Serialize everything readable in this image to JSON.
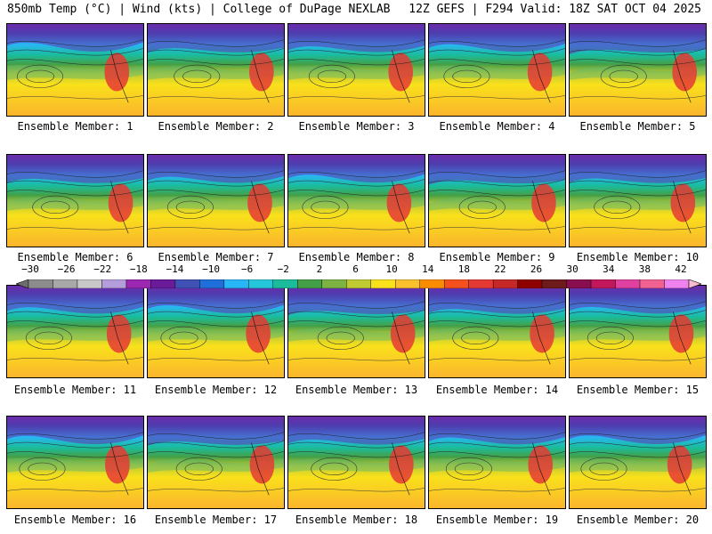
{
  "header": {
    "left": "850mb Temp (°C) | Wind (kts) | College of DuPage NEXLAB",
    "right": "12Z GEFS | F294 Valid: 18Z SAT OCT 04 2025"
  },
  "members": [
    "Ensemble Member: 1",
    "Ensemble Member: 2",
    "Ensemble Member: 3",
    "Ensemble Member: 4",
    "Ensemble Member: 5",
    "Ensemble Member: 6",
    "Ensemble Member: 7",
    "Ensemble Member: 8",
    "Ensemble Member: 9",
    "Ensemble Member: 10",
    "Ensemble Member: 11",
    "Ensemble Member: 12",
    "Ensemble Member: 13",
    "Ensemble Member: 14",
    "Ensemble Member: 15",
    "Ensemble Member: 16",
    "Ensemble Member: 17",
    "Ensemble Member: 18",
    "Ensemble Member: 19",
    "Ensemble Member: 20"
  ],
  "colorbar": {
    "ticks": [
      "−30",
      "−26",
      "−22",
      "−18",
      "−14",
      "−10",
      "−6",
      "−2",
      "2",
      "6",
      "10",
      "14",
      "18",
      "22",
      "26",
      "30",
      "34",
      "38",
      "42"
    ],
    "colors": [
      "#6e6e6e",
      "#8c8c8c",
      "#a8a8a8",
      "#c8c8c8",
      "#b39ddb",
      "#9c27b0",
      "#6a1b9a",
      "#3f51b5",
      "#1e6fd9",
      "#29b6f6",
      "#26c6da",
      "#1abc9c",
      "#43a047",
      "#7cb342",
      "#c0ca33",
      "#f9e11b",
      "#fbc02d",
      "#fb8c00",
      "#f4511e",
      "#e53935",
      "#c62828",
      "#8e0000",
      "#6d1b1b",
      "#880e4f",
      "#c2185b",
      "#e040a0",
      "#f06292",
      "#ee82ee",
      "#f8bbd0"
    ]
  }
}
